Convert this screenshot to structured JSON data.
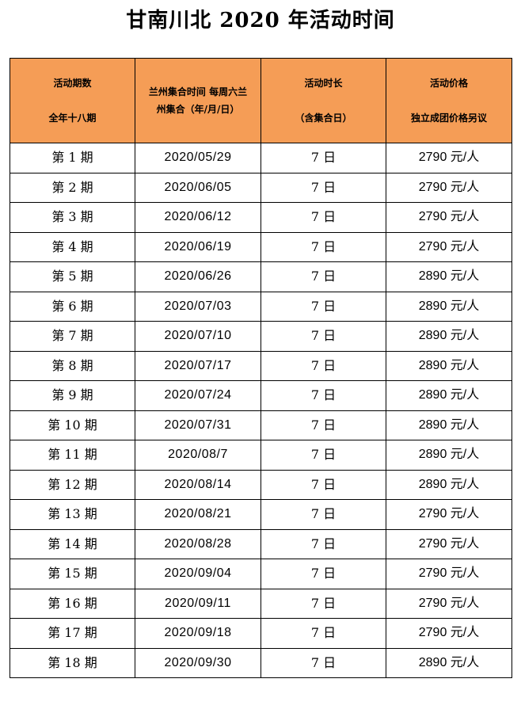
{
  "title": "甘南川北 2020 年活动时间",
  "table": {
    "headers": [
      {
        "line1": "活动期数",
        "line2": "全年十八期"
      },
      {
        "line1": "兰州集合时间 每周六兰",
        "line2": "州集合（年/月/日）"
      },
      {
        "line1": "活动时长",
        "line2": "（含集合日）"
      },
      {
        "line1": "活动价格",
        "line2": "独立成团价格另议"
      }
    ],
    "rows": [
      {
        "period": "第 1 期",
        "date": "2020/05/29",
        "duration": "7 日",
        "price": "2790 元/人"
      },
      {
        "period": "第 2 期",
        "date": "2020/06/05",
        "duration": "7 日",
        "price": "2790 元/人"
      },
      {
        "period": "第 3 期",
        "date": "2020/06/12",
        "duration": "7 日",
        "price": "2790 元/人"
      },
      {
        "period": "第 4 期",
        "date": "2020/06/19",
        "duration": "7 日",
        "price": "2790 元/人"
      },
      {
        "period": "第 5 期",
        "date": "2020/06/26",
        "duration": "7 日",
        "price": "2890 元/人"
      },
      {
        "period": "第 6 期",
        "date": "2020/07/03",
        "duration": "7 日",
        "price": "2890 元/人"
      },
      {
        "period": "第 7 期",
        "date": "2020/07/10",
        "duration": "7 日",
        "price": "2890 元/人"
      },
      {
        "period": "第 8 期",
        "date": "2020/07/17",
        "duration": "7 日",
        "price": "2890 元/人"
      },
      {
        "period": "第 9 期",
        "date": "2020/07/24",
        "duration": "7 日",
        "price": "2890 元/人"
      },
      {
        "period": "第 10 期",
        "date": "2020/07/31",
        "duration": "7 日",
        "price": "2890 元/人"
      },
      {
        "period": "第 11 期",
        "date": "2020/08/7",
        "duration": "7 日",
        "price": "2890 元/人"
      },
      {
        "period": "第 12 期",
        "date": "2020/08/14",
        "duration": "7 日",
        "price": "2890 元/人"
      },
      {
        "period": "第 13 期",
        "date": "2020/08/21",
        "duration": "7 日",
        "price": "2790 元/人"
      },
      {
        "period": "第 14 期",
        "date": "2020/08/28",
        "duration": "7 日",
        "price": "2790 元/人"
      },
      {
        "period": "第 15 期",
        "date": "2020/09/04",
        "duration": "7 日",
        "price": "2790 元/人"
      },
      {
        "period": "第 16 期",
        "date": "2020/09/11",
        "duration": "7 日",
        "price": "2790 元/人"
      },
      {
        "period": "第 17 期",
        "date": "2020/09/18",
        "duration": "7 日",
        "price": "2790 元/人"
      },
      {
        "period": "第 18 期",
        "date": "2020/09/30",
        "duration": "7 日",
        "price": "2890 元/人"
      }
    ]
  },
  "colors": {
    "header_background": "#f59d56",
    "border": "#000000",
    "text": "#000000"
  }
}
